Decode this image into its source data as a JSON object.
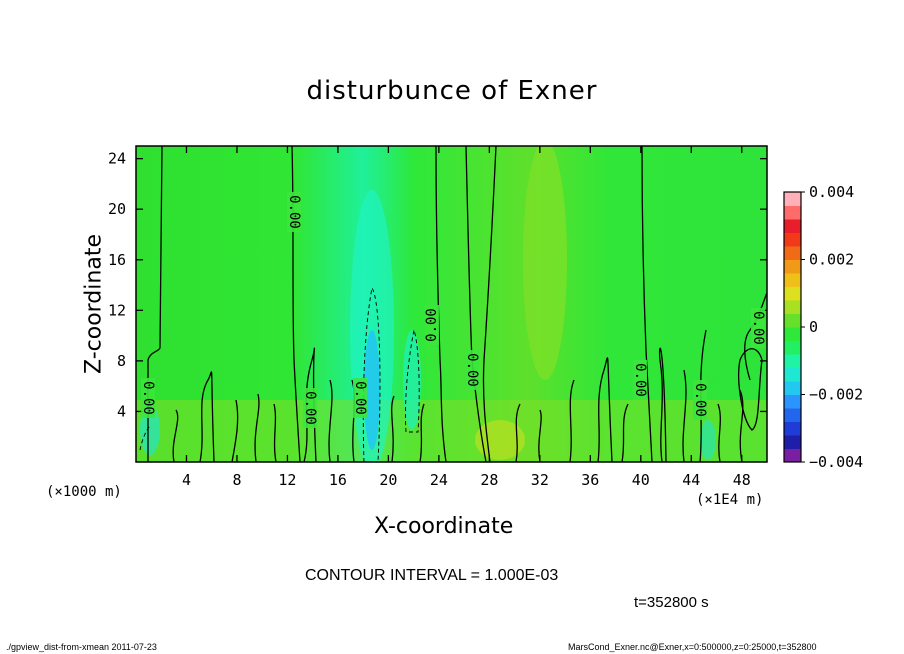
{
  "chart_data": {
    "type": "heatmap",
    "title": "disturbunce of Exner",
    "xlabel": "X-coordinate",
    "ylabel": "Z-coordinate",
    "x_unit_left": "(×1000 m)",
    "x_unit_right": "(×1E4 m)",
    "xlim": [
      0,
      50
    ],
    "ylim": [
      0,
      25
    ],
    "x_ticks": [
      4,
      8,
      12,
      16,
      20,
      24,
      28,
      32,
      36,
      40,
      44,
      48
    ],
    "x_tick_labels": [
      "4",
      "8",
      "12",
      "16",
      "20",
      "24",
      "28",
      "32",
      "36",
      "40",
      "44",
      "48"
    ],
    "y_ticks": [
      4,
      8,
      12,
      16,
      20,
      24
    ],
    "y_tick_labels": [
      "4",
      "8",
      "12",
      "16",
      "20",
      "24"
    ],
    "colorbar": {
      "range": [
        -0.004,
        0.004
      ],
      "tick_labels": [
        "0.004",
        "0.002",
        "0",
        "−0.002",
        "−0.004"
      ],
      "tick_values": [
        0.004,
        0.002,
        0,
        -0.002,
        -0.004
      ],
      "colors": [
        "#7a1fa2",
        "#1e1ea8",
        "#1f3cd6",
        "#2266ee",
        "#2b94ff",
        "#22c8f0",
        "#1fe8d2",
        "#1ff3a4",
        "#22f062",
        "#2ee83a",
        "#66e02a",
        "#a8e024",
        "#dde01e",
        "#f0c01a",
        "#f09a18",
        "#f06a18",
        "#f03a1a",
        "#e81e2a",
        "#ff6b6b",
        "#ffb0b8"
      ]
    },
    "contour_labels": [
      "0.00",
      "0.00",
      "0.00",
      "0.00",
      "0.00",
      "0.00",
      "0.00",
      "0.00",
      "0.00"
    ],
    "contour_interval_text": "CONTOUR INTERVAL = 1.000E-03",
    "time_text": "t=352800 s"
  },
  "footer": {
    "left": "./gpview_dist-from-xmean  2011-07-23",
    "right": "MarsCond_Exner.nc@Exner,x=0:500000,z=0:25000,t=352800"
  }
}
